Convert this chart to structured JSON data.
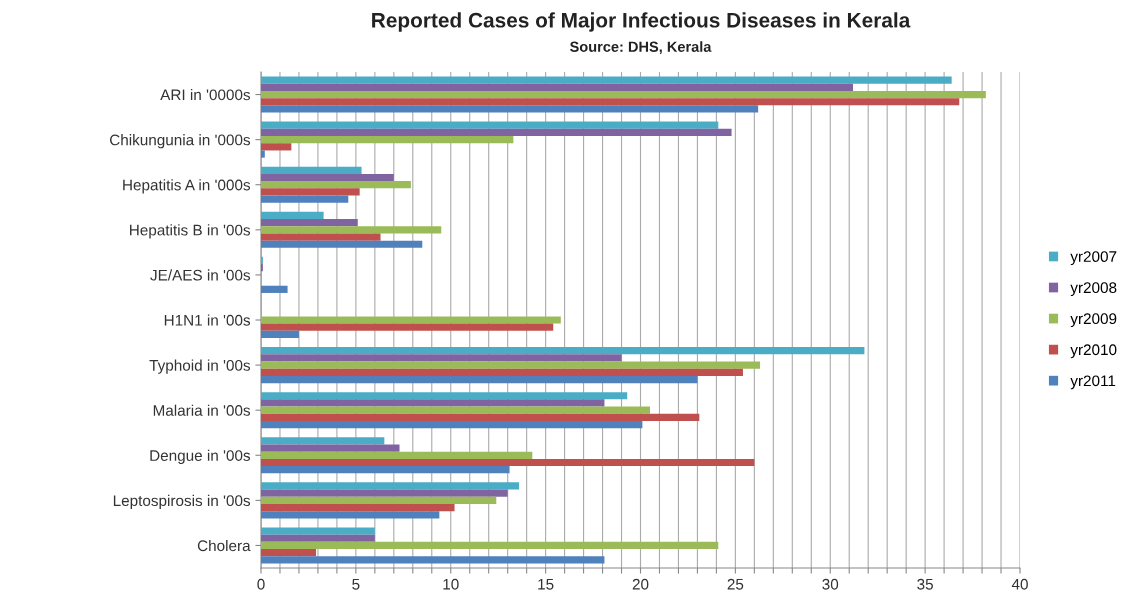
{
  "chart_data": {
    "type": "bar",
    "orientation": "horizontal",
    "title": "Reported Cases of Major Infectious Diseases in Kerala",
    "subtitle": "Source: DHS, Kerala",
    "categories": [
      "ARI in '0000s",
      "Chikungunia in '000s",
      "Hepatitis A in '000s",
      "Hepatitis B in '00s",
      "JE/AES in '00s",
      "H1N1 in '00s",
      "Typhoid in '00s",
      "Malaria in '00s",
      "Dengue in '00s",
      "Leptospirosis in '00s",
      "Cholera"
    ],
    "series": [
      {
        "name": "yr2007",
        "color": "#4bacc6",
        "values": [
          36.4,
          24.1,
          5.3,
          3.3,
          0.1,
          0,
          31.8,
          19.3,
          6.5,
          13.6,
          6.0
        ]
      },
      {
        "name": "yr2008",
        "color": "#8064a2",
        "values": [
          31.2,
          24.8,
          7.0,
          5.1,
          0.1,
          0,
          19.0,
          18.1,
          7.3,
          13.0,
          6.0
        ]
      },
      {
        "name": "yr2009",
        "color": "#9bbb59",
        "values": [
          38.2,
          13.3,
          7.9,
          9.5,
          0,
          15.8,
          26.3,
          20.5,
          14.3,
          12.4,
          24.1
        ]
      },
      {
        "name": "yr2010",
        "color": "#c0504d",
        "values": [
          36.8,
          1.6,
          5.2,
          6.3,
          0,
          15.4,
          25.4,
          23.1,
          26.0,
          10.2,
          2.9
        ]
      },
      {
        "name": "yr2011",
        "color": "#4f81bd",
        "values": [
          26.2,
          0.2,
          4.6,
          8.5,
          1.4,
          2.0,
          23.0,
          20.1,
          13.1,
          9.4,
          18.1
        ]
      }
    ],
    "xlim": [
      0,
      40
    ],
    "xticks": [
      0,
      {
        "value": 1,
        "label": null
      },
      {
        "value": 2,
        "label": null
      },
      {
        "value": 3,
        "label": null
      },
      {
        "value": 4,
        "label": null
      },
      5,
      {
        "value": 6,
        "label": null
      },
      {
        "value": 7,
        "label": null
      },
      {
        "value": 8,
        "label": null
      },
      {
        "value": 9,
        "label": null
      },
      10,
      {
        "value": 11,
        "label": null
      },
      {
        "value": 12,
        "label": null
      },
      {
        "value": 13,
        "label": null
      },
      {
        "value": 14,
        "label": null
      },
      15,
      {
        "value": 16,
        "label": null
      },
      {
        "value": 17,
        "label": null
      },
      {
        "value": 18,
        "label": null
      },
      {
        "value": 19,
        "label": null
      },
      20,
      {
        "value": 21,
        "label": null
      },
      {
        "value": 22,
        "label": null
      },
      {
        "value": 23,
        "label": null
      },
      {
        "value": 24,
        "label": null
      },
      25,
      {
        "value": 26,
        "label": null
      },
      {
        "value": 27,
        "label": null
      },
      {
        "value": 28,
        "label": null
      },
      {
        "value": 29,
        "label": null
      },
      30,
      {
        "value": 31,
        "label": null
      },
      {
        "value": 32,
        "label": null
      },
      {
        "value": 33,
        "label": null
      },
      {
        "value": 34,
        "label": null
      },
      35,
      {
        "value": 36,
        "label": null
      },
      {
        "value": 37,
        "label": null
      },
      {
        "value": 38,
        "label": null
      },
      {
        "value": 39,
        "label": null
      },
      40
    ],
    "grid": "x",
    "legend": "right"
  }
}
